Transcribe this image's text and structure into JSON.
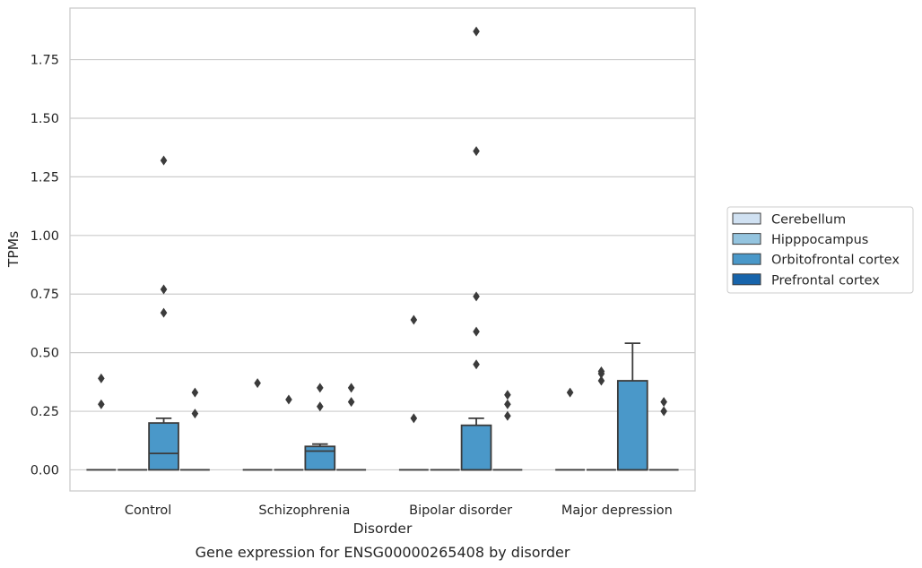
{
  "chart_data": {
    "type": "box",
    "caption": "Gene expression for ENSG00000265408 by disorder",
    "xlabel": "Disorder",
    "ylabel": "TPMs",
    "ylim": [
      -0.09,
      1.97
    ],
    "yticks": [
      0.0,
      0.25,
      0.5,
      0.75,
      1.0,
      1.25,
      1.5,
      1.75
    ],
    "ytick_labels": [
      "0.00",
      "0.25",
      "0.50",
      "0.75",
      "1.00",
      "1.25",
      "1.50",
      "1.75"
    ],
    "grid": true,
    "legend_position": "right",
    "categories": [
      "Control",
      "Schizophrenia",
      "Bipolar disorder",
      "Major depression"
    ],
    "series": [
      {
        "name": "Cerebellum",
        "color": "#d0e1f2",
        "boxes": [
          {
            "q1": 0,
            "median": 0,
            "q3": 0,
            "whisker_low": 0,
            "whisker_high": 0,
            "outliers": [
              0.28,
              0.39
            ]
          },
          {
            "q1": 0,
            "median": 0,
            "q3": 0,
            "whisker_low": 0,
            "whisker_high": 0,
            "outliers": [
              0.37
            ]
          },
          {
            "q1": 0,
            "median": 0,
            "q3": 0,
            "whisker_low": 0,
            "whisker_high": 0,
            "outliers": [
              0.22,
              0.64
            ]
          },
          {
            "q1": 0,
            "median": 0,
            "q3": 0,
            "whisker_low": 0,
            "whisker_high": 0,
            "outliers": [
              0.33
            ]
          }
        ]
      },
      {
        "name": "Hipppocampus",
        "color": "#94c4df",
        "boxes": [
          {
            "q1": 0,
            "median": 0,
            "q3": 0,
            "whisker_low": 0,
            "whisker_high": 0,
            "outliers": []
          },
          {
            "q1": 0,
            "median": 0,
            "q3": 0,
            "whisker_low": 0,
            "whisker_high": 0,
            "outliers": [
              0.3
            ]
          },
          {
            "q1": 0,
            "median": 0,
            "q3": 0,
            "whisker_low": 0,
            "whisker_high": 0,
            "outliers": []
          },
          {
            "q1": 0,
            "median": 0,
            "q3": 0,
            "whisker_low": 0,
            "whisker_high": 0,
            "outliers": [
              0.38,
              0.41,
              0.42
            ]
          }
        ]
      },
      {
        "name": "Orbitofrontal cortex",
        "color": "#4a98c9",
        "boxes": [
          {
            "q1": 0,
            "median": 0.07,
            "q3": 0.2,
            "whisker_low": 0,
            "whisker_high": 0.22,
            "outliers": [
              0.67,
              0.77,
              1.32
            ]
          },
          {
            "q1": 0,
            "median": 0.08,
            "q3": 0.1,
            "whisker_low": 0,
            "whisker_high": 0.11,
            "outliers": [
              0.27,
              0.35
            ]
          },
          {
            "q1": 0,
            "median": 0,
            "q3": 0.19,
            "whisker_low": 0,
            "whisker_high": 0.22,
            "outliers": [
              0.45,
              0.59,
              0.74,
              1.36,
              1.87
            ]
          },
          {
            "q1": 0,
            "median": 0,
            "q3": 0.38,
            "whisker_low": 0,
            "whisker_high": 0.54,
            "outliers": []
          }
        ]
      },
      {
        "name": "Prefrontal cortex",
        "color": "#1764ab",
        "boxes": [
          {
            "q1": 0,
            "median": 0,
            "q3": 0,
            "whisker_low": 0,
            "whisker_high": 0,
            "outliers": [
              0.24,
              0.33
            ]
          },
          {
            "q1": 0,
            "median": 0,
            "q3": 0,
            "whisker_low": 0,
            "whisker_high": 0,
            "outliers": [
              0.29,
              0.35
            ]
          },
          {
            "q1": 0,
            "median": 0,
            "q3": 0,
            "whisker_low": 0,
            "whisker_high": 0,
            "outliers": [
              0.23,
              0.28,
              0.32
            ]
          },
          {
            "q1": 0,
            "median": 0,
            "q3": 0,
            "whisker_low": 0,
            "whisker_high": 0,
            "outliers": [
              0.25,
              0.29
            ]
          }
        ]
      }
    ]
  }
}
